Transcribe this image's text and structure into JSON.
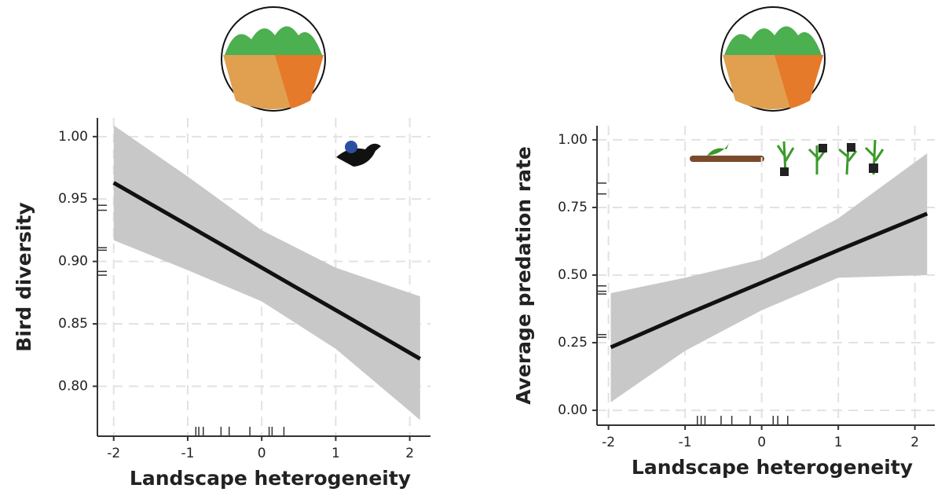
{
  "chart_data": [
    {
      "type": "line",
      "x_label": "Landscape heterogeneity",
      "y_label": "Bird diversity",
      "x": [
        -2,
        -1,
        0,
        1,
        2.14
      ],
      "values": [
        0.963,
        0.929,
        0.895,
        0.861,
        0.822
      ],
      "upper": [
        1.009,
        0.968,
        0.925,
        0.895,
        0.872
      ],
      "lower": [
        0.917,
        0.893,
        0.868,
        0.83,
        0.773
      ],
      "color": "#111111",
      "band_color": "#c8c8c8",
      "rug_x": [
        -0.89,
        -0.85,
        -0.79,
        -0.55,
        -0.44,
        -0.16,
        0.1,
        0.14,
        0.3
      ],
      "rug_y": [
        0.945,
        0.941,
        0.911,
        0.909,
        0.892,
        0.889
      ],
      "xlim": [
        -2.22,
        2.28
      ],
      "ylim": [
        0.76,
        1.015
      ],
      "xticks": [
        -2,
        -1,
        0,
        1,
        2
      ],
      "yticks": [
        {
          "value": 0.8,
          "label": "0.80"
        },
        {
          "value": 0.85,
          "label": "0.85"
        },
        {
          "value": 0.9,
          "label": "0.90"
        },
        {
          "value": 0.95,
          "label": "0.95"
        },
        {
          "value": 1.0,
          "label": "1.00"
        }
      ],
      "grid": true
    },
    {
      "type": "line",
      "x_label": "Landscape heterogeneity",
      "y_label": "Average predation rate",
      "x": [
        -1.97,
        -1,
        0,
        1,
        2.16
      ],
      "values": [
        0.233,
        0.353,
        0.472,
        0.592,
        0.727
      ],
      "upper": [
        0.433,
        0.49,
        0.558,
        0.71,
        0.95
      ],
      "lower": [
        0.03,
        0.22,
        0.37,
        0.49,
        0.5
      ],
      "color": "#111111",
      "band_color": "#c8c8c8",
      "rug_x": [
        -0.84,
        -0.79,
        -0.74,
        -0.53,
        -0.39,
        -0.15,
        0.15,
        0.21,
        0.34
      ],
      "rug_y": [
        0.84,
        0.8,
        0.46,
        0.44,
        0.43,
        0.28,
        0.27
      ],
      "xlim": [
        -2.15,
        2.26
      ],
      "ylim": [
        -0.055,
        1.052
      ],
      "xticks": [
        -2,
        -1,
        0,
        1,
        2
      ],
      "yticks": [
        {
          "value": 0,
          "label": "0.00"
        },
        {
          "value": 0.25,
          "label": "0.25"
        },
        {
          "value": 0.5,
          "label": "0.50"
        },
        {
          "value": 0.75,
          "label": "0.75"
        },
        {
          "value": 1,
          "label": "1.00"
        }
      ],
      "grid": true
    }
  ]
}
